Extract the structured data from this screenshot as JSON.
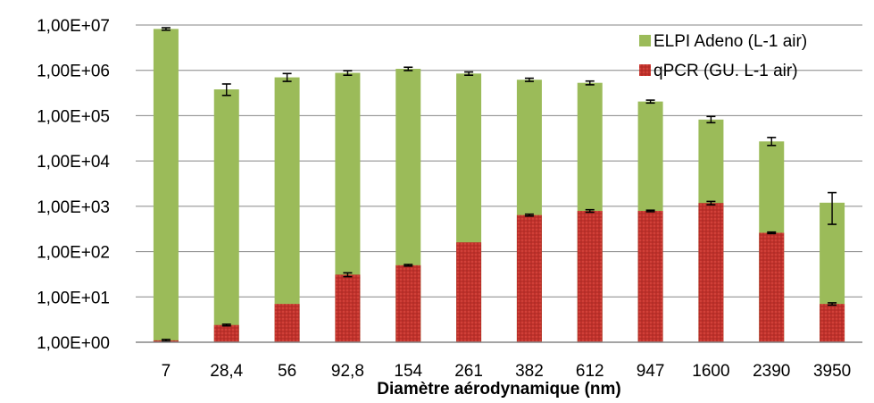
{
  "chart_data": {
    "type": "bar",
    "title": "",
    "xlabel": "Diamètre aérodynamique (nm)",
    "ylabel": "",
    "yscale": "log",
    "ylim": [
      1,
      10000000
    ],
    "yticks": [
      1,
      10,
      100,
      1000,
      10000,
      100000,
      1000000,
      10000000
    ],
    "ytick_labels": [
      "1,00E+00",
      "1,00E+01",
      "1,00E+02",
      "1,00E+03",
      "1,00E+04",
      "1,00E+05",
      "1,00E+06",
      "1,00E+07"
    ],
    "categories": [
      "7",
      "28,4",
      "56",
      "92,8",
      "154",
      "261",
      "382",
      "612",
      "947",
      "1600",
      "2390",
      "3950"
    ],
    "legend_position": "top-right",
    "grid": "horizontal",
    "series": [
      {
        "name": "ELPI Adeno (L-1 air)",
        "color": "#9bbb59",
        "values": [
          8200000,
          380000,
          700000,
          880000,
          1080000,
          850000,
          620000,
          530000,
          205000,
          82000,
          27000,
          1200
        ],
        "err_low": [
          7700000,
          280000,
          570000,
          780000,
          990000,
          780000,
          570000,
          480000,
          190000,
          70000,
          22000,
          400
        ],
        "err_high": [
          8700000,
          500000,
          850000,
          980000,
          1170000,
          920000,
          670000,
          580000,
          220000,
          96000,
          33000,
          2000
        ]
      },
      {
        "name": "qPCR (GU. L-1 air)",
        "color": "#c0312b",
        "values": [
          1.1,
          2.4,
          7,
          31,
          50,
          160,
          640,
          790,
          790,
          1180,
          260,
          7
        ],
        "err_low": [
          1.05,
          2.3,
          null,
          28,
          48,
          null,
          610,
          740,
          760,
          1080,
          250,
          6.6
        ],
        "err_high": [
          1.15,
          2.5,
          null,
          34,
          52,
          null,
          670,
          840,
          820,
          1280,
          270,
          7.4
        ]
      }
    ]
  }
}
